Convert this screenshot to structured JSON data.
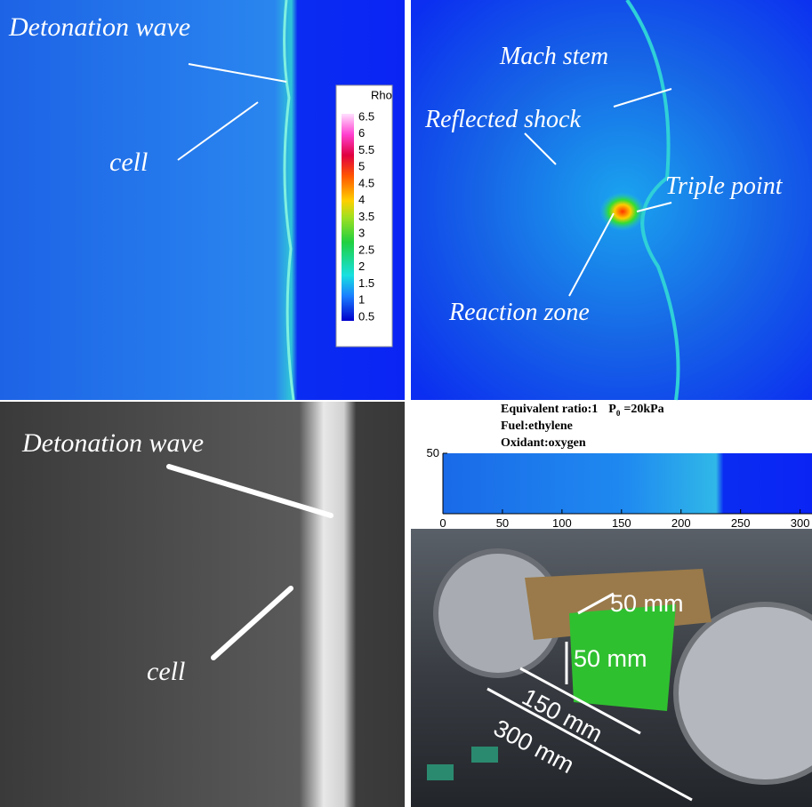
{
  "top_left": {
    "labels": [
      "Detonation wave",
      "cell"
    ]
  },
  "top_right": {
    "labels": [
      "Mach stem",
      "Reflected shock",
      "Triple point",
      "Reaction zone"
    ]
  },
  "colorbar": {
    "title": "Rho",
    "ticks": [
      6.5,
      6,
      5.5,
      5,
      4.5,
      4,
      3.5,
      3,
      2.5,
      2,
      1.5,
      1,
      0.5
    ]
  },
  "bottom_left": {
    "labels": [
      "Detonation wave",
      "cell"
    ]
  },
  "bottom_right": {
    "header": {
      "ratio": "Equivalent ratio:1",
      "pressure_symbol": "P",
      "pressure_subscript": "0",
      "pressure_value": "=20kPa",
      "fuel": "Fuel:ethylene",
      "oxidant": "Oxidant:oxygen"
    },
    "plot": {
      "xlim": [
        0,
        310
      ],
      "ylim": [
        0,
        50
      ],
      "xticks": [
        0,
        50,
        100,
        150,
        200,
        250,
        300
      ],
      "yticks": [
        50
      ]
    },
    "photo_labels": [
      "50 mm",
      "50 mm",
      "150 mm",
      "300 mm"
    ]
  }
}
